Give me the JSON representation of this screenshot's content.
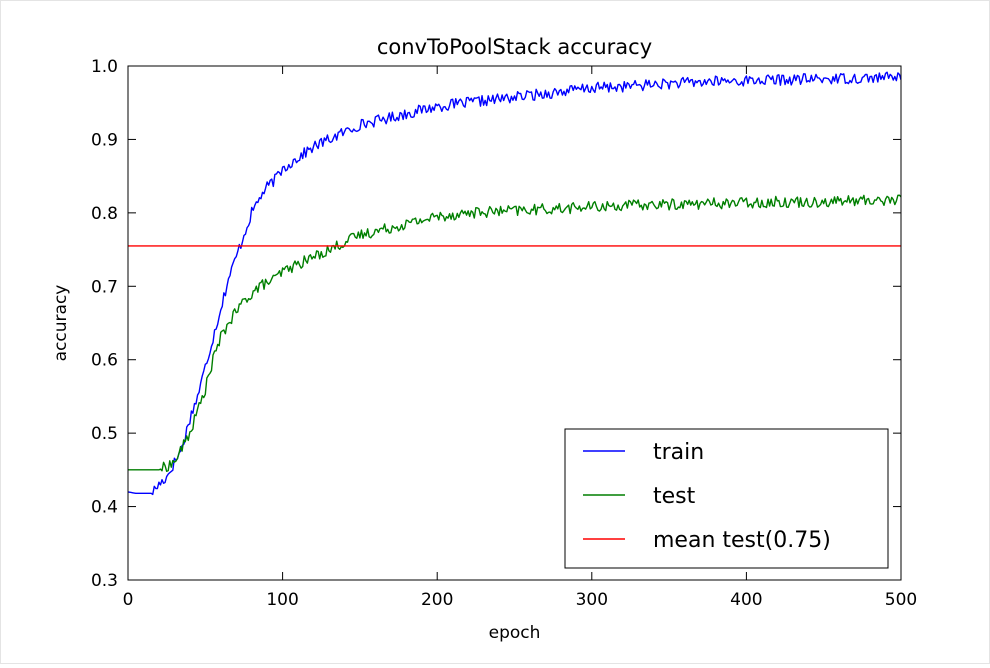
{
  "chart_data": {
    "type": "line",
    "title": "convToPoolStack accuracy",
    "xlabel": "epoch",
    "ylabel": "accuracy",
    "xlim": [
      0,
      500
    ],
    "ylim": [
      0.3,
      1.0
    ],
    "xticks": [
      "0",
      "100",
      "200",
      "300",
      "400",
      "500"
    ],
    "yticks": [
      "0.3",
      "0.4",
      "0.5",
      "0.6",
      "0.7",
      "0.8",
      "0.9",
      "1.0"
    ],
    "grid": false,
    "legend_position": "lower-right",
    "series": [
      {
        "name": "train",
        "color": "#0000ff",
        "x": [
          0,
          5,
          10,
          15,
          20,
          25,
          30,
          35,
          40,
          45,
          50,
          55,
          60,
          65,
          70,
          75,
          80,
          85,
          90,
          95,
          100,
          110,
          120,
          130,
          140,
          150,
          160,
          170,
          180,
          190,
          200,
          220,
          240,
          260,
          280,
          300,
          320,
          340,
          360,
          380,
          400,
          420,
          440,
          460,
          480,
          500
        ],
        "values": [
          0.42,
          0.418,
          0.418,
          0.418,
          0.43,
          0.44,
          0.46,
          0.48,
          0.52,
          0.55,
          0.59,
          0.63,
          0.67,
          0.71,
          0.74,
          0.77,
          0.8,
          0.82,
          0.835,
          0.845,
          0.86,
          0.875,
          0.89,
          0.9,
          0.91,
          0.92,
          0.925,
          0.93,
          0.935,
          0.94,
          0.945,
          0.95,
          0.955,
          0.96,
          0.965,
          0.97,
          0.972,
          0.975,
          0.977,
          0.979,
          0.98,
          0.981,
          0.982,
          0.983,
          0.984,
          0.985
        ]
      },
      {
        "name": "test",
        "color": "#007f00",
        "x": [
          0,
          5,
          10,
          15,
          20,
          25,
          30,
          35,
          40,
          45,
          50,
          55,
          60,
          65,
          70,
          75,
          80,
          85,
          90,
          95,
          100,
          110,
          120,
          130,
          140,
          150,
          160,
          170,
          180,
          190,
          200,
          220,
          240,
          260,
          280,
          300,
          320,
          340,
          360,
          380,
          400,
          420,
          440,
          460,
          480,
          500
        ],
        "values": [
          0.45,
          0.45,
          0.45,
          0.45,
          0.45,
          0.455,
          0.46,
          0.48,
          0.5,
          0.53,
          0.56,
          0.6,
          0.63,
          0.65,
          0.665,
          0.68,
          0.69,
          0.7,
          0.705,
          0.71,
          0.72,
          0.73,
          0.74,
          0.75,
          0.76,
          0.77,
          0.775,
          0.78,
          0.785,
          0.79,
          0.795,
          0.8,
          0.802,
          0.804,
          0.806,
          0.808,
          0.81,
          0.811,
          0.812,
          0.813,
          0.814,
          0.815,
          0.815,
          0.816,
          0.817,
          0.818
        ]
      },
      {
        "name": "mean test(0.75)",
        "color": "#ff0000",
        "x": [
          0,
          500
        ],
        "values": [
          0.755,
          0.755
        ]
      }
    ]
  }
}
